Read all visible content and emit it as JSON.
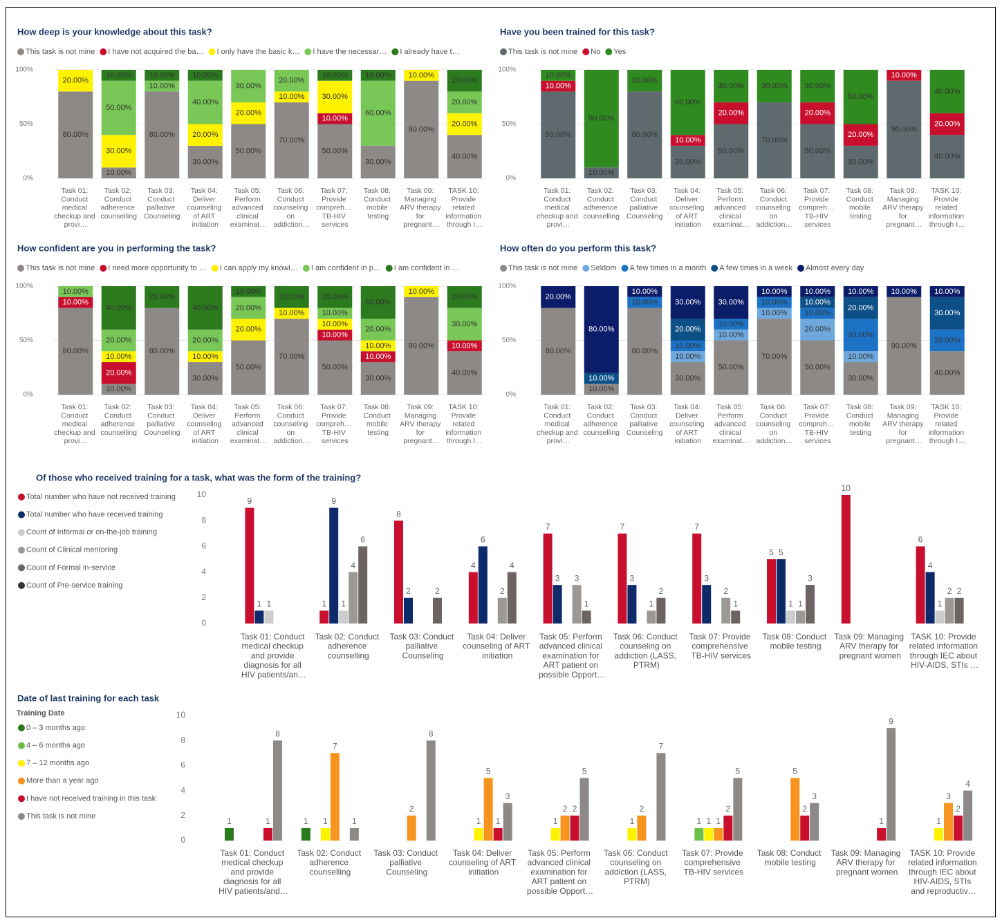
{
  "chart_data": [
    {
      "type": "bar",
      "stacked": true,
      "legend": "top",
      "grid": true,
      "title": "How deep is your knowledge about this task?",
      "categories": [
        "Task 01: Conduct medical checkup and provi…",
        "Task 02: Conduct adherence counselling",
        "Task 03: Conduct palliative Counseling",
        "Task 04: Deliver counseling of ART initiation",
        "Task 05: Perform advanced clinical examinat…",
        "Task 06: Conduct counseling on addiction…",
        "Task 07: Provide compreh… TB-HIV services",
        "Task 08: Conduct mobile testing",
        "Task 09: Managing ARV therapy for pregnant…",
        "TASK 10: Provide related information through I…"
      ],
      "ylim": [
        0,
        100
      ],
      "yticks": [
        {
          "value": 0,
          "label": "0%"
        },
        {
          "value": 50,
          "label": "50%"
        },
        {
          "value": 100,
          "label": "100%"
        }
      ],
      "series": [
        {
          "name": "This task is not mine",
          "color": "#8d8987",
          "values": [
            80,
            10,
            80,
            30,
            50,
            70,
            50,
            30,
            90,
            40
          ],
          "value_labels": [
            "80.00%",
            "10.00%",
            "80.00%",
            "30.00%",
            "50.00%",
            "70.00%",
            "50.00%",
            "30.00%",
            "90.00%",
            "40.00%"
          ]
        },
        {
          "name": "I have not acquired the ba…",
          "color": "#c8102e",
          "values": [
            null,
            null,
            null,
            null,
            null,
            null,
            10,
            null,
            null,
            null
          ],
          "value_labels": [
            null,
            null,
            null,
            null,
            null,
            null,
            "10.00%",
            null,
            null,
            null
          ]
        },
        {
          "name": "I only have the basic k…",
          "color": "#fff200",
          "values": [
            20,
            30,
            null,
            20,
            20,
            10,
            30,
            null,
            10,
            20
          ],
          "value_labels": [
            "20.00%",
            "30.00%",
            null,
            "20.00%",
            "20.00%",
            "10.00%",
            "30.00%",
            null,
            "10.00%",
            "20.00%"
          ]
        },
        {
          "name": "I have the necessar…",
          "color": "#79c757",
          "values": [
            null,
            50,
            10,
            40,
            30,
            20,
            null,
            60,
            null,
            20
          ],
          "value_labels": [
            null,
            "50.00%",
            "10.00%",
            "40.00%",
            "30.00%",
            "20.00%",
            null,
            "60.00%",
            null,
            "20.00%"
          ]
        },
        {
          "name": "I already have t…",
          "color": "#2b7a1e",
          "values": [
            null,
            10,
            10,
            10,
            null,
            null,
            10,
            10,
            null,
            20
          ],
          "value_labels": [
            null,
            "10.00%",
            "10.00%",
            "10.00%",
            null,
            null,
            "10.00%",
            "10.00%",
            null,
            "20.00%"
          ]
        }
      ]
    },
    {
      "type": "bar",
      "stacked": true,
      "legend": "top",
      "grid": true,
      "title": "Have you been trained for this task?",
      "categories": [
        "Task 01: Conduct medical checkup and provi…",
        "Task 02: Conduct adherence counselling",
        "Task 03: Conduct palliative Counseling",
        "Task 04: Deliver counseling of ART initiation",
        "Task 05: Perform advanced clinical examinat…",
        "Task 06: Conduct counseling on addiction…",
        "Task 07: Provide compreh… TB-HIV services",
        "Task 08: Conduct mobile testing",
        "Task 09: Managing ARV therapy for pregnant…",
        "TASK 10: Provide related information through I…"
      ],
      "ylim": [
        0,
        100
      ],
      "yticks": [
        {
          "value": 0,
          "label": "0%"
        },
        {
          "value": 50,
          "label": "50%"
        },
        {
          "value": 100,
          "label": "100%"
        }
      ],
      "series": [
        {
          "name": "This task is not mine",
          "color": "#5f6a6e",
          "values": [
            80,
            10,
            80,
            30,
            50,
            70,
            50,
            30,
            90,
            40
          ],
          "value_labels": [
            "80.00%",
            "10.00%",
            "80.00%",
            "30.00%",
            "50.00%",
            "70.00%",
            "50.00%",
            "30.00%",
            "90.00%",
            "40.00%"
          ]
        },
        {
          "name": "No",
          "color": "#c8102e",
          "values": [
            10,
            null,
            null,
            10,
            20,
            null,
            20,
            20,
            10,
            20
          ],
          "value_labels": [
            "10.00%",
            null,
            null,
            "10.00%",
            "20.00%",
            null,
            "20.00%",
            "20.00%",
            "10.00%",
            "20.00%"
          ]
        },
        {
          "name": "Yes",
          "color": "#2f8a1f",
          "values": [
            10,
            90,
            20,
            60,
            30,
            30,
            30,
            50,
            null,
            40
          ],
          "value_labels": [
            "10.00%",
            "90.00%",
            "20.00%",
            "60.00%",
            "30.00%",
            "30.00%",
            "30.00%",
            "50.00%",
            null,
            "40.00%"
          ]
        }
      ]
    },
    {
      "type": "bar",
      "stacked": true,
      "legend": "top",
      "grid": true,
      "title": "How confident are you in performing the task?",
      "categories": [
        "Task 01: Conduct medical checkup and provi…",
        "Task 02: Conduct adherence counselling",
        "Task 03: Conduct palliative Counseling",
        "Task 04: Deliver counseling of ART initiation",
        "Task 05: Perform advanced clinical examinat…",
        "Task 06: Conduct counseling on addiction…",
        "Task 07: Provide compreh… TB-HIV services",
        "Task 08: Conduct mobile testing",
        "Task 09: Managing ARV therapy for pregnant…",
        "TASK 10: Provide related information through I…"
      ],
      "ylim": [
        0,
        100
      ],
      "yticks": [
        {
          "value": 0,
          "label": "0%"
        },
        {
          "value": 50,
          "label": "50%"
        },
        {
          "value": 100,
          "label": "100%"
        }
      ],
      "series": [
        {
          "name": "This task is not mine",
          "color": "#8d8987",
          "values": [
            80,
            10,
            80,
            30,
            50,
            70,
            50,
            30,
            90,
            40
          ],
          "value_labels": [
            "80.00%",
            "10.00%",
            "80.00%",
            "30.00%",
            "50.00%",
            "70.00%",
            "50.00%",
            "30.00%",
            "90.00%",
            "40.00%"
          ]
        },
        {
          "name": "I need more opportunity to …",
          "color": "#c8102e",
          "values": [
            10,
            20,
            null,
            null,
            null,
            null,
            10,
            10,
            null,
            10
          ],
          "value_labels": [
            "10.00%",
            "20.00%",
            null,
            null,
            null,
            null,
            "10.00%",
            "10.00%",
            null,
            "10.00%"
          ]
        },
        {
          "name": "I can apply my knowl…",
          "color": "#fff200",
          "values": [
            null,
            10,
            null,
            10,
            20,
            10,
            10,
            10,
            10,
            null
          ],
          "value_labels": [
            null,
            "10.00%",
            null,
            "10.00%",
            "20.00%",
            "10.00%",
            "10.00%",
            "10.00%",
            "10.00%",
            null
          ]
        },
        {
          "name": "I am confident in p…",
          "color": "#79c757",
          "values": [
            10,
            20,
            null,
            20,
            20,
            null,
            10,
            20,
            null,
            30
          ],
          "value_labels": [
            "10.00%",
            "20.00%",
            null,
            "20.00%",
            "20.00%",
            null,
            "10.00%",
            "20.00%",
            null,
            "30.00%"
          ]
        },
        {
          "name": "I am confident in …",
          "color": "#2b7a1e",
          "values": [
            null,
            40,
            20,
            40,
            10,
            20,
            20,
            30,
            null,
            20
          ],
          "value_labels": [
            null,
            "40.00%",
            "20.00%",
            "40.00%",
            "10.00%",
            "20.00%",
            "20.00%",
            "30.00%",
            null,
            "20.00%"
          ]
        }
      ]
    },
    {
      "type": "bar",
      "stacked": true,
      "legend": "top",
      "grid": true,
      "title": "How often do you perform this task?",
      "categories": [
        "Task 01: Conduct medical checkup and provi…",
        "Task 02: Conduct adherence counselling",
        "Task 03: Conduct palliative Counseling",
        "Task 04: Deliver counseling of ART initiation",
        "Task 05: Perform advanced clinical examinat…",
        "Task 06: Conduct counseling on addiction…",
        "Task 07: Provide compreh… TB-HIV services",
        "Task 08: Conduct mobile testing",
        "Task 09: Managing ARV therapy for pregnant…",
        "TASK 10: Provide related information through I…"
      ],
      "ylim": [
        0,
        100
      ],
      "yticks": [
        {
          "value": 0,
          "label": "0%"
        },
        {
          "value": 50,
          "label": "50%"
        },
        {
          "value": 100,
          "label": "100%"
        }
      ],
      "series": [
        {
          "name": "This task is not mine",
          "color": "#8d8987",
          "values": [
            80,
            10,
            80,
            30,
            50,
            70,
            50,
            30,
            90,
            40
          ],
          "value_labels": [
            "80.00%",
            "10.00%",
            "80.00%",
            "30.00%",
            "50.00%",
            "70.00%",
            "50.00%",
            "30.00%",
            "90.00%",
            "40.00%"
          ]
        },
        {
          "name": "Seldom",
          "color": "#6fa8dc",
          "values": [
            null,
            null,
            null,
            10,
            10,
            10,
            20,
            10,
            null,
            null
          ],
          "value_labels": [
            null,
            null,
            null,
            "10.00%",
            "10.00%",
            "10.00%",
            "20.00%",
            "10.00%",
            null,
            null
          ]
        },
        {
          "name": "A few times in a month",
          "color": "#1c73c6",
          "values": [
            null,
            null,
            10,
            10,
            10,
            10,
            10,
            30,
            null,
            20
          ],
          "value_labels": [
            null,
            null,
            "10.00%",
            "10.00%",
            "10.00%",
            "10.00%",
            "10.00%",
            "30.00%",
            null,
            "20.00%"
          ]
        },
        {
          "name": "A few times in a week",
          "color": "#0d4f87",
          "values": [
            null,
            10,
            null,
            20,
            null,
            null,
            10,
            20,
            null,
            30
          ],
          "value_labels": [
            null,
            "10.00%",
            null,
            "20.00%",
            null,
            null,
            "10.00%",
            "20.00%",
            null,
            "30.00%"
          ]
        },
        {
          "name": "Almost every day",
          "color": "#0b1c68",
          "values": [
            20,
            80,
            10,
            30,
            30,
            10,
            10,
            10,
            10,
            10
          ],
          "value_labels": [
            "20.00%",
            "80.00%",
            "10.00%",
            "30.00%",
            "30.00%",
            "10.00%",
            "10.00%",
            "10.00%",
            "10.00%",
            "10.00%"
          ]
        }
      ]
    },
    {
      "type": "bar",
      "stacked": false,
      "legend": "left",
      "grid": false,
      "title": "Of those who received training for a task, what was the form of the training?",
      "categories": [
        "Task 01: Conduct medical checkup and provide diagnosis for all HIV patients/an…",
        "Task 02: Conduct adherence counselling",
        "Task 03: Conduct palliative Counseling",
        "Task 04: Deliver counseling of ART initiation",
        "Task 05: Perform advanced clinical examination for ART patient on possible Opport…",
        "Task 06: Conduct counseling on addiction (LASS, PTRM)",
        "Task 07: Provide comprehensive TB-HIV services",
        "Task 08: Conduct mobile testing",
        "Task 09: Managing ARV therapy for pregnant women",
        "TASK 10: Provide related information through IEC about HIV-AIDS, STIs …"
      ],
      "ylim": [
        0,
        10
      ],
      "yticks": [
        0,
        2,
        4,
        6,
        8,
        10
      ],
      "series": [
        {
          "name": "Total number who have not received training",
          "color": "#c8102e",
          "values": [
            9,
            1,
            8,
            4,
            7,
            7,
            7,
            5,
            10,
            6
          ]
        },
        {
          "name": "Total number who have received training",
          "color": "#0d2a6b",
          "values": [
            1,
            9,
            2,
            6,
            3,
            3,
            3,
            5,
            null,
            4
          ]
        },
        {
          "name": "Count of Informal or on-the-job training",
          "color": "#cccccc",
          "values": [
            1,
            1,
            null,
            null,
            null,
            null,
            null,
            1,
            null,
            1
          ]
        },
        {
          "name": "Count of Clinical mentoring",
          "color": "#9b9896",
          "values": [
            null,
            4,
            null,
            2,
            3,
            1,
            2,
            1,
            null,
            2
          ]
        },
        {
          "name": "Count of Formal in-service",
          "color": "#6b6462",
          "values": [
            null,
            6,
            2,
            4,
            1,
            2,
            1,
            3,
            null,
            2
          ]
        },
        {
          "name": "Count of Pre-service training",
          "color": "#333333",
          "values": [
            null,
            null,
            null,
            null,
            null,
            null,
            null,
            null,
            null,
            null
          ]
        }
      ]
    },
    {
      "type": "bar",
      "stacked": false,
      "legend": "left",
      "grid": false,
      "title": "Date of last training for each task",
      "legend_title": "Training Date",
      "categories": [
        "Task 01: Conduct medical checkup and provide diagnosis for all HIV patients/and…",
        "Task 02: Conduct adherence counselling",
        "Task 03: Conduct palliative Counseling",
        "Task 04: Deliver counseling of ART initiation",
        "Task 05: Perform advanced clinical examination for ART patient on possible Opport…",
        "Task 06: Conduct counseling on addiction (LASS, PTRM)",
        "Task 07: Provide comprehensive TB-HIV services",
        "Task 08: Conduct mobile testing",
        "Task 09: Managing ARV therapy for pregnant women",
        "TASK 10: Provide related information through IEC about HIV-AIDS, STIs and reproductiv…"
      ],
      "ylim": [
        0,
        10
      ],
      "yticks": [
        0,
        2,
        4,
        6,
        8,
        10
      ],
      "series": [
        {
          "name": "0 – 3 months ago",
          "color": "#2b7a1e",
          "values": [
            1,
            1,
            null,
            null,
            null,
            null,
            null,
            null,
            null,
            null
          ]
        },
        {
          "name": "4 – 6 months ago",
          "color": "#6cc04a",
          "values": [
            null,
            null,
            null,
            null,
            null,
            null,
            1,
            null,
            null,
            null
          ]
        },
        {
          "name": "7 – 12 months ago",
          "color": "#fff200",
          "values": [
            null,
            1,
            null,
            1,
            1,
            1,
            1,
            null,
            null,
            1
          ]
        },
        {
          "name": "More than a year ago",
          "color": "#f7941d",
          "values": [
            null,
            7,
            2,
            5,
            2,
            2,
            1,
            5,
            null,
            3
          ]
        },
        {
          "name": "I have not received training in this task",
          "color": "#c8102e",
          "values": [
            1,
            null,
            null,
            1,
            2,
            null,
            2,
            2,
            1,
            2
          ]
        },
        {
          "name": "This task is not mine",
          "color": "#8d8987",
          "values": [
            8,
            1,
            8,
            3,
            5,
            7,
            5,
            3,
            9,
            4
          ]
        }
      ]
    }
  ]
}
